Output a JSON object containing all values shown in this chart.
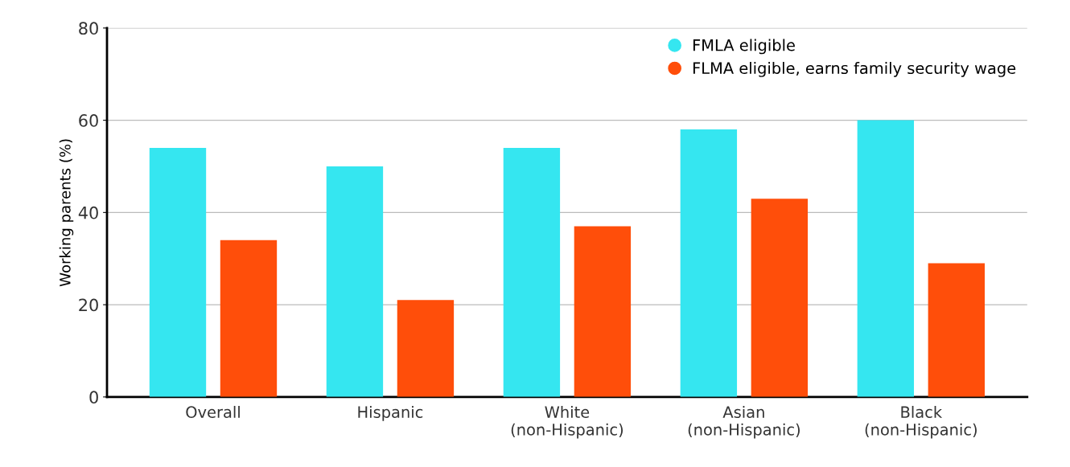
{
  "chart_data": {
    "type": "bar",
    "ylabel": "Working parents (%)",
    "categories": [
      "Overall",
      "Hispanic",
      "White\n(non-Hispanic)",
      "Asian\n(non-Hispanic)",
      "Black\n(non-Hispanic)"
    ],
    "series": [
      {
        "name": "FMLA eligible",
        "color": "#35e6f0",
        "values": [
          54,
          50,
          54,
          58,
          60
        ]
      },
      {
        "name": "FLMA eligible, earns family security wage",
        "color": "#ff4e0a",
        "values": [
          34,
          21,
          37,
          43,
          29
        ]
      }
    ],
    "ylim": [
      0,
      80
    ],
    "yticks": [
      0,
      20,
      40,
      60,
      80
    ],
    "grid": "y",
    "legend": "top right",
    "marker": "circle"
  }
}
